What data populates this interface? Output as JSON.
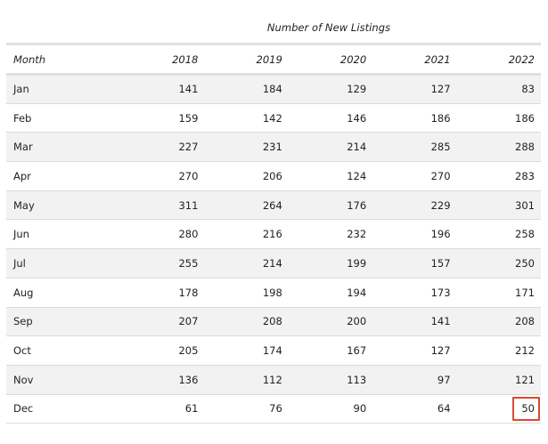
{
  "table": {
    "title": "Number of New Listings",
    "columns": [
      "Month",
      "2018",
      "2019",
      "2020",
      "2021",
      "2022"
    ],
    "rows": [
      [
        "Jan",
        "141",
        "184",
        "129",
        "127",
        "83"
      ],
      [
        "Feb",
        "159",
        "142",
        "146",
        "186",
        "186"
      ],
      [
        "Mar",
        "227",
        "231",
        "214",
        "285",
        "288"
      ],
      [
        "Apr",
        "270",
        "206",
        "124",
        "270",
        "283"
      ],
      [
        "May",
        "311",
        "264",
        "176",
        "229",
        "301"
      ],
      [
        "Jun",
        "280",
        "216",
        "232",
        "196",
        "258"
      ],
      [
        "Jul",
        "255",
        "214",
        "199",
        "157",
        "250"
      ],
      [
        "Aug",
        "178",
        "198",
        "194",
        "173",
        "171"
      ],
      [
        "Sep",
        "207",
        "208",
        "200",
        "141",
        "208"
      ],
      [
        "Oct",
        "205",
        "174",
        "167",
        "127",
        "212"
      ],
      [
        "Nov",
        "136",
        "112",
        "113",
        "97",
        "121"
      ],
      [
        "Dec",
        "61",
        "76",
        "90",
        "64",
        "50"
      ]
    ],
    "highlighted_cell": {
      "row": "Dec",
      "column": "2022",
      "value": "50",
      "outline_color": "#d9492f"
    }
  }
}
